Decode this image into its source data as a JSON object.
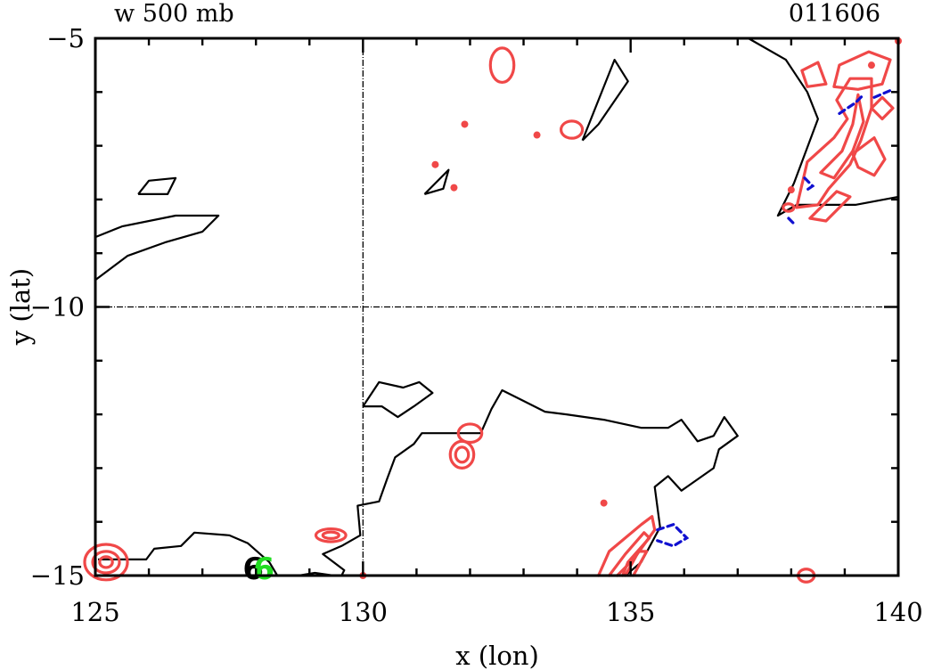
{
  "chart_data": {
    "type": "contour",
    "title_left": "w 500 mb",
    "title_right": "011606",
    "xlabel": "x (lon)",
    "ylabel": "y (lat)",
    "xlim": [
      125,
      140
    ],
    "ylim": [
      -15,
      -5
    ],
    "x_ticks": [
      125,
      130,
      135,
      140
    ],
    "x_tick_labels": [
      "125",
      "130",
      "135",
      "140"
    ],
    "y_ticks": [
      -15,
      -10,
      -5
    ],
    "y_tick_labels": [
      "−15",
      "−10",
      "−5"
    ],
    "reference_lines": {
      "lon": 130,
      "lat": -10
    },
    "colors": {
      "coast": "#000000",
      "positive": "#f04848",
      "negative": "#1010d0",
      "marker": "#22dd22"
    },
    "coastlines": [
      [
        [
          125,
          -8.7
        ],
        [
          125.5,
          -8.5
        ],
        [
          126.5,
          -8.3
        ],
        [
          127.3,
          -8.3
        ],
        [
          127,
          -8.6
        ],
        [
          126.3,
          -8.8
        ],
        [
          125.6,
          -9.05
        ],
        [
          125,
          -9.5
        ]
      ],
      [
        [
          125.8,
          -7.9
        ],
        [
          126,
          -7.65
        ],
        [
          126.5,
          -7.6
        ],
        [
          126.35,
          -7.9
        ],
        [
          125.8,
          -7.9
        ]
      ],
      [
        [
          131.15,
          -7.9
        ],
        [
          131.6,
          -7.45
        ],
        [
          131.5,
          -7.8
        ],
        [
          131.15,
          -7.9
        ]
      ],
      [
        [
          134.1,
          -6.9
        ],
        [
          134.7,
          -5.4
        ],
        [
          134.95,
          -5.8
        ],
        [
          134.4,
          -6.6
        ],
        [
          134.1,
          -6.9
        ]
      ],
      [
        [
          135.8,
          -5
        ],
        [
          137.2,
          -5
        ],
        [
          137.9,
          -5.4
        ],
        [
          138.3,
          -6
        ],
        [
          138.5,
          -6.5
        ],
        [
          138.05,
          -7.7
        ],
        [
          137.75,
          -8.3
        ],
        [
          138.1,
          -8.1
        ],
        [
          139.2,
          -8.1
        ],
        [
          140,
          -7.95
        ]
      ],
      [
        [
          125.05,
          -14.7
        ],
        [
          125.95,
          -14.7
        ],
        [
          126.1,
          -14.5
        ],
        [
          126.6,
          -14.45
        ],
        [
          126.85,
          -14.2
        ],
        [
          127.5,
          -14.25
        ],
        [
          127.85,
          -14.4
        ],
        [
          128.25,
          -14.75
        ],
        [
          128.4,
          -15
        ]
      ],
      [
        [
          128.8,
          -15
        ],
        [
          129.1,
          -14.95
        ],
        [
          129.45,
          -15
        ]
      ],
      [
        [
          129.6,
          -15
        ],
        [
          129.65,
          -14.9
        ],
        [
          129.25,
          -14.6
        ],
        [
          129.6,
          -14.45
        ],
        [
          129.95,
          -14.25
        ],
        [
          129.9,
          -13.7
        ],
        [
          130.3,
          -13.62
        ],
        [
          130.45,
          -13.2
        ],
        [
          130.6,
          -12.8
        ],
        [
          130.95,
          -12.55
        ],
        [
          131.1,
          -12.35
        ],
        [
          132.2,
          -12.35
        ],
        [
          132.4,
          -11.9
        ],
        [
          132.6,
          -11.55
        ],
        [
          133,
          -11.75
        ],
        [
          133.4,
          -11.95
        ],
        [
          133.8,
          -12
        ],
        [
          134.5,
          -12.1
        ],
        [
          135.2,
          -12.25
        ],
        [
          135.7,
          -12.25
        ],
        [
          135.95,
          -12.1
        ],
        [
          136.25,
          -12.5
        ],
        [
          136.55,
          -12.4
        ],
        [
          136.75,
          -12.05
        ],
        [
          137,
          -12.4
        ],
        [
          136.65,
          -12.65
        ],
        [
          136.55,
          -13
        ],
        [
          136.05,
          -13.35
        ],
        [
          135.95,
          -13.42
        ],
        [
          135.7,
          -13.15
        ],
        [
          135.45,
          -13.35
        ],
        [
          135.55,
          -14.1
        ],
        [
          135.2,
          -14.75
        ],
        [
          134.9,
          -15
        ]
      ],
      [
        [
          130,
          -11.85
        ],
        [
          130.3,
          -11.4
        ],
        [
          130.75,
          -11.5
        ],
        [
          131.05,
          -11.4
        ],
        [
          131.3,
          -11.6
        ],
        [
          130.95,
          -11.85
        ],
        [
          130.65,
          -12.05
        ],
        [
          130.35,
          -11.85
        ],
        [
          130,
          -11.85
        ]
      ]
    ],
    "positive_contours": [
      [
        [
          134.4,
          -15
        ],
        [
          134.6,
          -14.55
        ],
        [
          135.2,
          -14.05
        ],
        [
          135.4,
          -13.9
        ],
        [
          135.45,
          -14.15
        ],
        [
          135.05,
          -14.7
        ],
        [
          134.75,
          -15
        ]
      ],
      [
        [
          134.6,
          -15
        ],
        [
          134.9,
          -14.6
        ],
        [
          135.25,
          -14.2
        ],
        [
          135.35,
          -14.3
        ],
        [
          134.95,
          -14.75
        ],
        [
          134.85,
          -15
        ]
      ],
      [
        [
          134.9,
          -15
        ],
        [
          135.15,
          -14.55
        ],
        [
          135.3,
          -14.55
        ],
        [
          135.05,
          -15
        ]
      ],
      [
        [
          138.3,
          -7.3
        ],
        [
          138.8,
          -6.85
        ],
        [
          139.05,
          -6.5
        ],
        [
          138.85,
          -6.15
        ],
        [
          139.1,
          -5.75
        ],
        [
          139.5,
          -5.75
        ],
        [
          139.5,
          -6.3
        ],
        [
          139.3,
          -6.9
        ],
        [
          139.1,
          -7.35
        ],
        [
          138.7,
          -7.8
        ],
        [
          138.5,
          -8.1
        ],
        [
          138.1,
          -8.15
        ],
        [
          138.3,
          -7.3
        ]
      ],
      [
        [
          138.55,
          -7.5
        ],
        [
          138.95,
          -7.1
        ],
        [
          139.15,
          -6.6
        ],
        [
          139.25,
          -6.05
        ],
        [
          139.35,
          -6.55
        ],
        [
          139.15,
          -7.1
        ],
        [
          138.8,
          -7.6
        ],
        [
          138.55,
          -7.5
        ]
      ],
      [
        [
          138.8,
          -5.9
        ],
        [
          138.9,
          -5.5
        ],
        [
          139.45,
          -5.25
        ],
        [
          139.85,
          -5.4
        ],
        [
          139.7,
          -5.85
        ],
        [
          139.25,
          -5.95
        ],
        [
          138.8,
          -5.9
        ]
      ],
      [
        [
          139.15,
          -7.15
        ],
        [
          139.55,
          -6.85
        ],
        [
          139.75,
          -7.25
        ],
        [
          139.55,
          -7.55
        ],
        [
          139.25,
          -7.4
        ],
        [
          139.15,
          -7.15
        ]
      ],
      [
        [
          138.2,
          -5.6
        ],
        [
          138.5,
          -5.45
        ],
        [
          138.65,
          -5.85
        ],
        [
          138.3,
          -5.9
        ],
        [
          138.2,
          -5.6
        ]
      ],
      [
        [
          138.35,
          -8.35
        ],
        [
          138.85,
          -7.85
        ],
        [
          139.1,
          -7.95
        ],
        [
          138.65,
          -8.4
        ],
        [
          138.35,
          -8.35
        ]
      ],
      [
        [
          139.5,
          -6.3
        ],
        [
          139.7,
          -6.1
        ],
        [
          139.9,
          -6.3
        ],
        [
          139.7,
          -6.5
        ],
        [
          139.5,
          -6.3
        ]
      ]
    ],
    "negative_contours": [
      [
        [
          135.5,
          -14.15
        ],
        [
          135.8,
          -14.05
        ],
        [
          136.05,
          -14.3
        ],
        [
          135.8,
          -14.45
        ],
        [
          135.5,
          -14.35
        ]
      ],
      [
        [
          138.9,
          -6.4
        ],
        [
          139.2,
          -6.2
        ],
        [
          139.35,
          -6.05
        ]
      ],
      [
        [
          139.55,
          -6.1
        ],
        [
          139.9,
          -5.95
        ]
      ],
      [
        [
          138.25,
          -7.6
        ],
        [
          138.4,
          -7.75
        ],
        [
          138.25,
          -7.85
        ]
      ],
      [
        [
          137.95,
          -8.35
        ],
        [
          138.05,
          -8.45
        ]
      ]
    ],
    "positive_rings": [
      {
        "lon": 125.2,
        "lat": -14.75,
        "rx": 0.4,
        "ry": 0.33
      },
      {
        "lon": 125.2,
        "lat": -14.75,
        "rx": 0.25,
        "ry": 0.2
      },
      {
        "lon": 125.2,
        "lat": -14.75,
        "rx": 0.12,
        "ry": 0.1
      },
      {
        "lon": 129.4,
        "lat": -14.25,
        "rx": 0.28,
        "ry": 0.12
      },
      {
        "lon": 129.4,
        "lat": -14.25,
        "rx": 0.15,
        "ry": 0.06
      },
      {
        "lon": 131.85,
        "lat": -12.75,
        "rx": 0.22,
        "ry": 0.25
      },
      {
        "lon": 131.85,
        "lat": -12.75,
        "rx": 0.12,
        "ry": 0.14
      },
      {
        "lon": 132.0,
        "lat": -12.35,
        "rx": 0.22,
        "ry": 0.17
      },
      {
        "lon": 132.6,
        "lat": -5.5,
        "rx": 0.22,
        "ry": 0.32
      },
      {
        "lon": 133.9,
        "lat": -6.7,
        "rx": 0.2,
        "ry": 0.16
      },
      {
        "lon": 138.28,
        "lat": -15.0,
        "rx": 0.15,
        "ry": 0.12
      },
      {
        "lon": 137.95,
        "lat": -8.15,
        "rx": 0.1,
        "ry": 0.07
      }
    ],
    "positive_dots": [
      {
        "lon": 131.9,
        "lat": -6.6
      },
      {
        "lon": 133.25,
        "lat": -6.8
      },
      {
        "lon": 131.35,
        "lat": -7.35
      },
      {
        "lon": 131.7,
        "lat": -7.78
      },
      {
        "lon": 138.0,
        "lat": -7.82
      },
      {
        "lon": 134.5,
        "lat": -13.65
      },
      {
        "lon": 130.0,
        "lat": -15.0
      },
      {
        "lon": 140.0,
        "lat": -5.05
      },
      {
        "lon": 139.5,
        "lat": -5.5
      }
    ],
    "markers": [
      {
        "lon": 127.95,
        "lat": -14.85,
        "label": "6",
        "color": "#000000"
      },
      {
        "lon": 128.15,
        "lat": -14.85,
        "label": "6",
        "color": "#22dd22"
      }
    ]
  }
}
